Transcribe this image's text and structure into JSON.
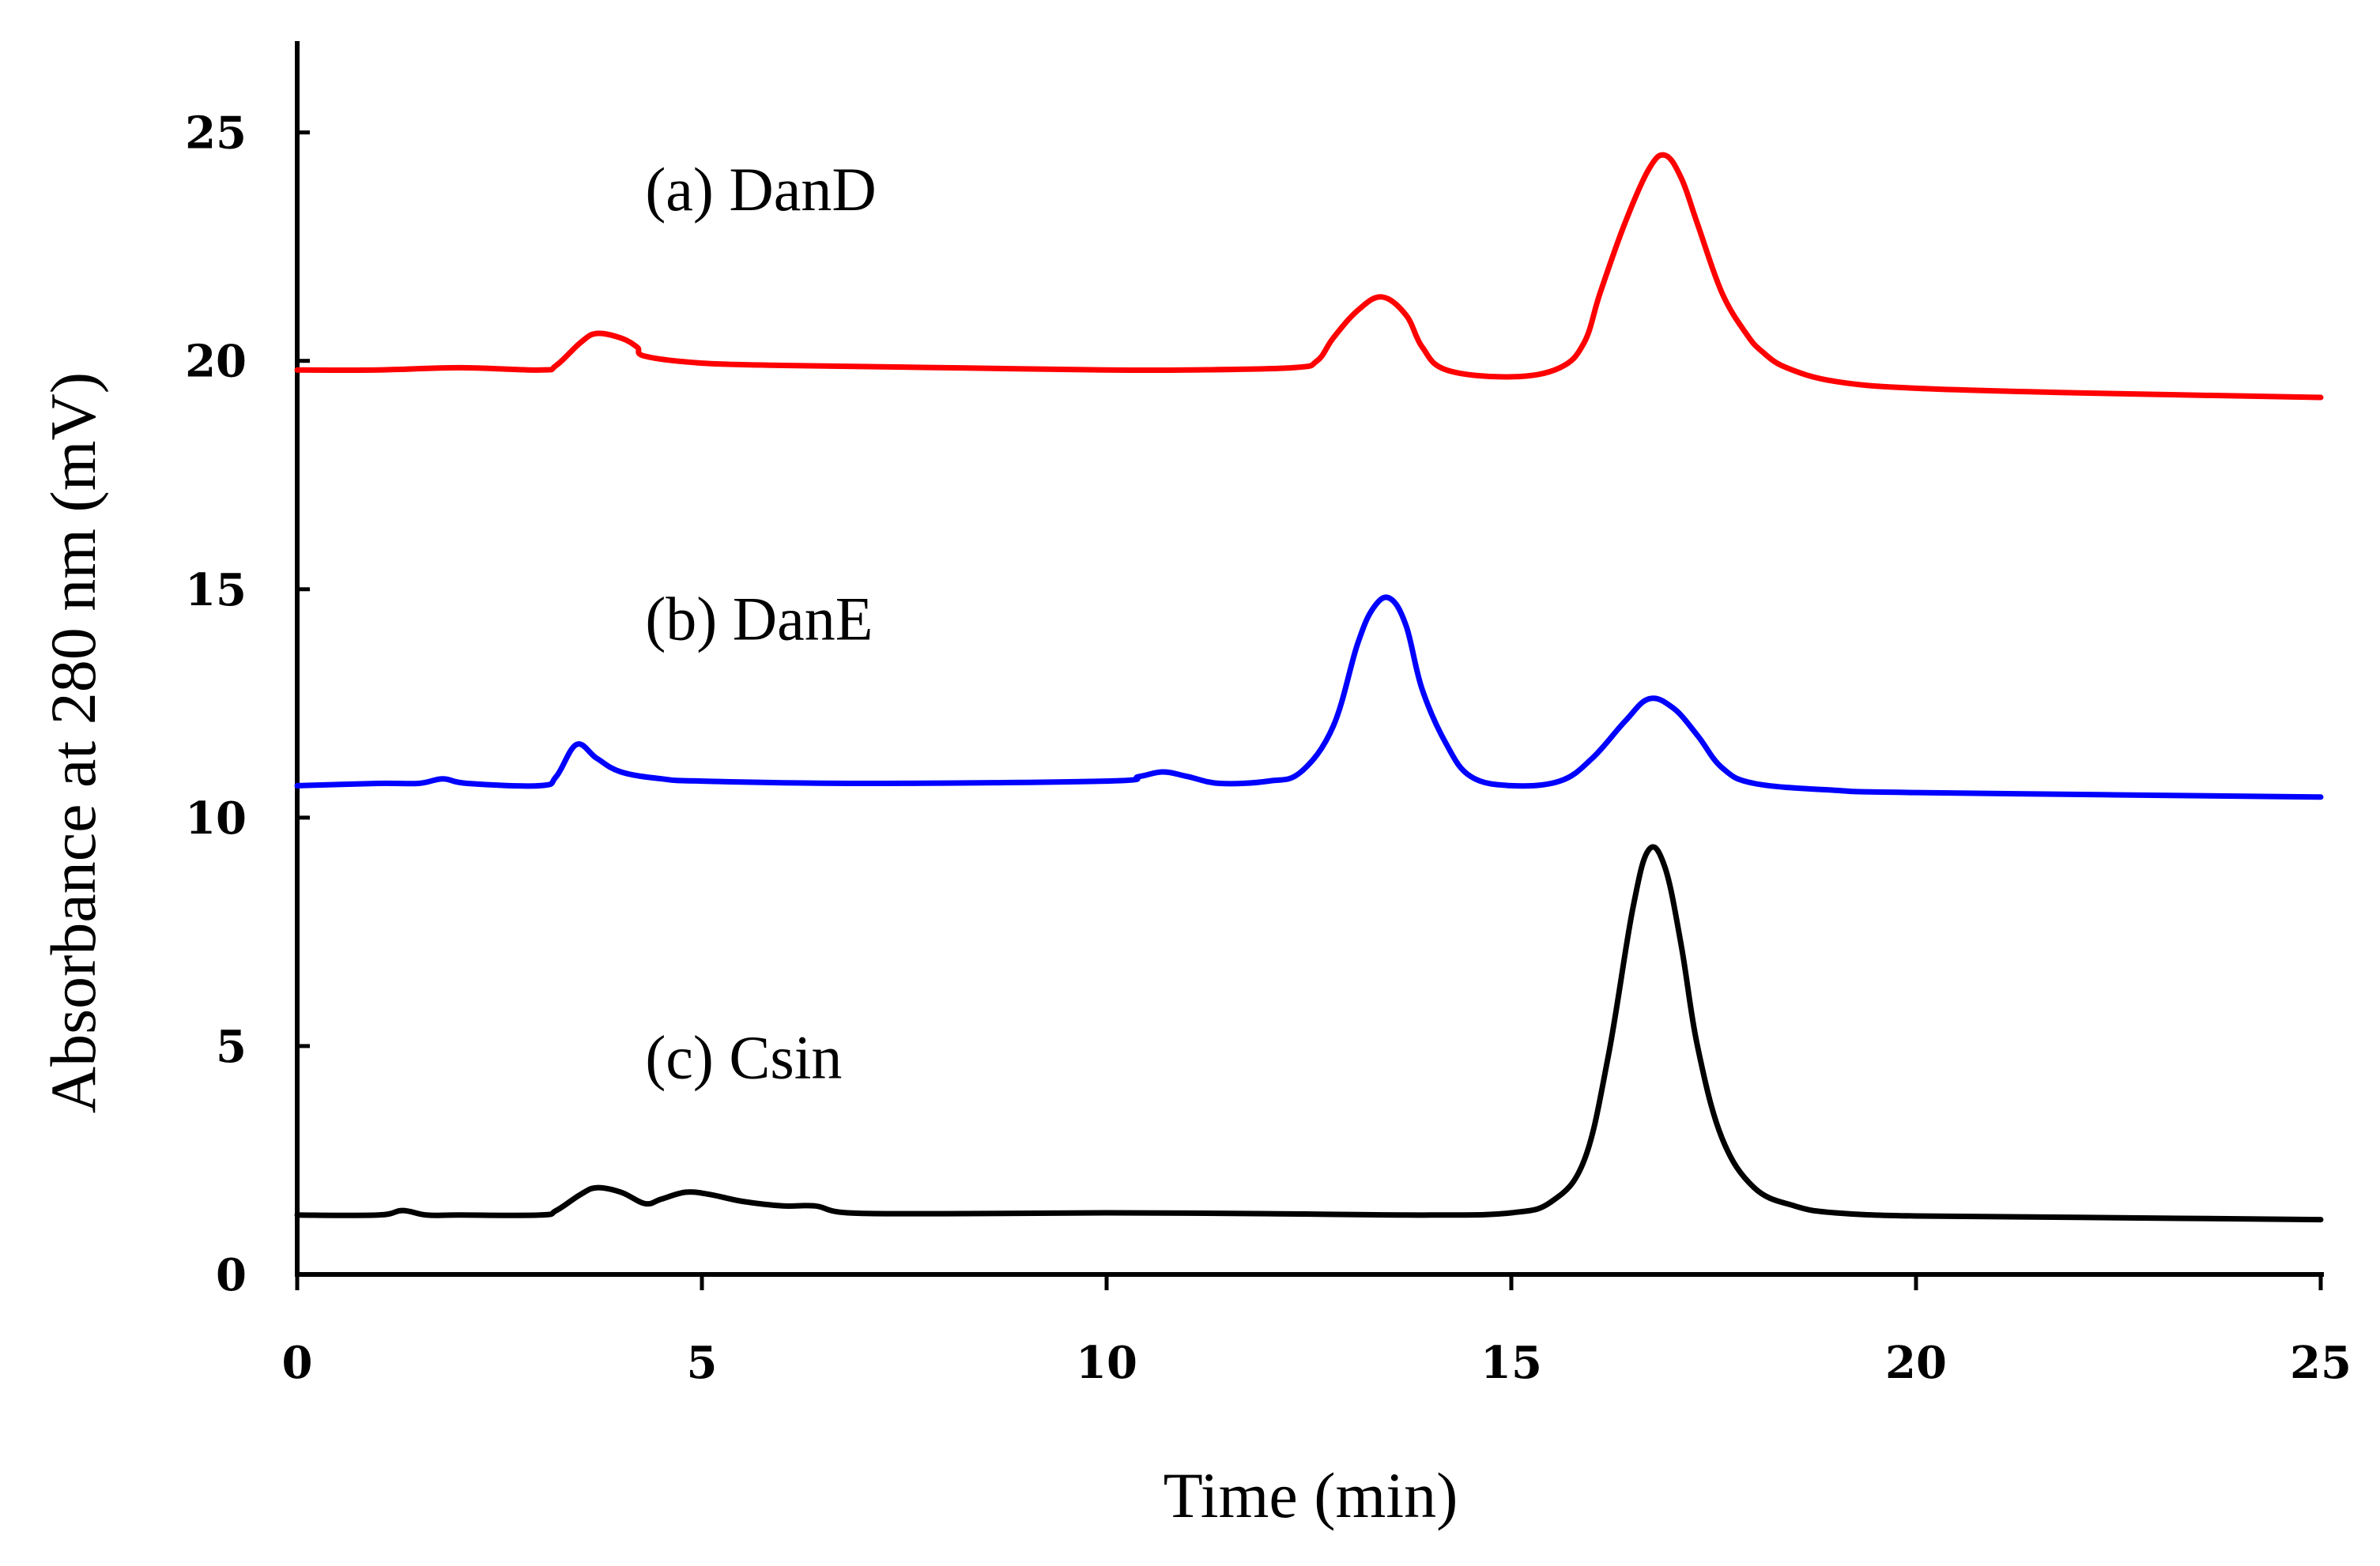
{
  "chart_data": {
    "type": "line",
    "title": "",
    "xlabel": "Time (min)",
    "ylabel": "Absorbance  at 280 nm (mV)",
    "xlim": [
      0,
      25
    ],
    "ylim": [
      0,
      27
    ],
    "xticks": [
      0,
      5,
      10,
      15,
      20,
      25
    ],
    "yticks": [
      0,
      5,
      10,
      15,
      20,
      25
    ],
    "grid": false,
    "legend": "inline labels",
    "series": [
      {
        "name": "(a) DanD",
        "color": "#ff0000",
        "label_position": [
          4.3,
          23.3
        ],
        "x": [
          0,
          1,
          2,
          3,
          3.2,
          3.5,
          3.7,
          4.0,
          4.2,
          4.3,
          5,
          6,
          8,
          10,
          11,
          12.3,
          12.6,
          12.8,
          13.1,
          13.4,
          13.7,
          13.9,
          14.2,
          15,
          15.6,
          15.9,
          16.1,
          16.4,
          16.7,
          16.9,
          17.1,
          17.3,
          17.6,
          17.9,
          18.1,
          18.4,
          19,
          20,
          22,
          25
        ],
        "y": [
          19.8,
          19.8,
          19.85,
          19.8,
          19.9,
          20.4,
          20.6,
          20.5,
          20.3,
          20.1,
          19.95,
          19.9,
          19.85,
          19.8,
          19.8,
          19.85,
          20.0,
          20.5,
          21.1,
          21.4,
          21.0,
          20.3,
          19.8,
          19.65,
          19.85,
          20.4,
          21.5,
          23.0,
          24.2,
          24.5,
          24.0,
          23.0,
          21.5,
          20.6,
          20.2,
          19.85,
          19.55,
          19.4,
          19.3,
          19.2
        ]
      },
      {
        "name": "(b) DanE",
        "color": "#0000ff",
        "label_position": [
          4.3,
          13.9
        ],
        "x": [
          0,
          1,
          1.5,
          1.8,
          2.1,
          3,
          3.2,
          3.45,
          3.7,
          4.0,
          4.5,
          5,
          7,
          10,
          10.4,
          10.7,
          11.0,
          11.4,
          12,
          12.4,
          12.8,
          13.1,
          13.3,
          13.5,
          13.7,
          13.9,
          14.2,
          14.5,
          15,
          15.6,
          16.0,
          16.4,
          16.7,
          17.0,
          17.3,
          17.6,
          18.0,
          19,
          20,
          25
        ],
        "y": [
          10.7,
          10.75,
          10.75,
          10.85,
          10.75,
          10.7,
          10.9,
          11.6,
          11.3,
          11.0,
          10.85,
          10.8,
          10.75,
          10.8,
          10.9,
          11.0,
          10.9,
          10.75,
          10.8,
          11.0,
          12.0,
          13.8,
          14.6,
          14.8,
          14.2,
          12.8,
          11.6,
          10.9,
          10.7,
          10.8,
          11.3,
          12.1,
          12.6,
          12.4,
          11.8,
          11.1,
          10.75,
          10.6,
          10.55,
          10.45
        ]
      },
      {
        "name": "(c) Csin",
        "color": "#000000",
        "label_position": [
          4.3,
          4.3
        ],
        "x": [
          0,
          1.0,
          1.3,
          1.6,
          2,
          3,
          3.2,
          3.5,
          3.7,
          4.0,
          4.3,
          4.5,
          4.8,
          5.1,
          5.5,
          6.0,
          6.4,
          6.8,
          8,
          10,
          12,
          14,
          15,
          15.5,
          15.9,
          16.2,
          16.5,
          16.7,
          16.9,
          17.1,
          17.3,
          17.6,
          18.0,
          18.5,
          19,
          20,
          22,
          25
        ],
        "y": [
          1.3,
          1.3,
          1.4,
          1.3,
          1.3,
          1.3,
          1.4,
          1.75,
          1.9,
          1.8,
          1.55,
          1.65,
          1.8,
          1.75,
          1.6,
          1.5,
          1.5,
          1.35,
          1.33,
          1.35,
          1.33,
          1.3,
          1.35,
          1.6,
          2.5,
          4.8,
          8.0,
          9.3,
          8.9,
          7.2,
          5.0,
          3.0,
          1.9,
          1.5,
          1.35,
          1.28,
          1.25,
          1.2
        ]
      }
    ]
  }
}
